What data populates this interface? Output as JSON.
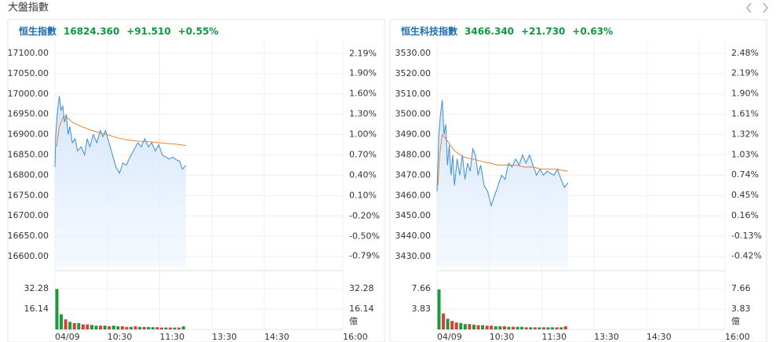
{
  "header": {
    "title": "大盤指數"
  },
  "chart_data": [
    {
      "type": "line",
      "quote": {
        "name": "恒生指數",
        "last": "16824.360",
        "change": "+91.510",
        "pct": "+0.55%"
      },
      "xlim": [
        0,
        330
      ],
      "xticks": [
        {
          "value": 0,
          "label": "04/09"
        },
        {
          "value": 60,
          "label": "10:30"
        },
        {
          "value": 120,
          "label": "11:30"
        },
        {
          "value": 180,
          "label": "13:30"
        },
        {
          "value": 240,
          "label": "14:30"
        },
        {
          "value": 300,
          "label": null
        },
        {
          "value": 330,
          "label": "16:00"
        }
      ],
      "ylim": [
        16575,
        17125
      ],
      "yticks": [
        {
          "value": 17100,
          "label": "17100.00"
        },
        {
          "value": 17050,
          "label": "17050.00"
        },
        {
          "value": 17000,
          "label": "17000.00"
        },
        {
          "value": 16950,
          "label": "16950.00"
        },
        {
          "value": 16900,
          "label": "16900.00"
        },
        {
          "value": 16850,
          "label": "16850.00"
        },
        {
          "value": 16800,
          "label": "16800.00"
        },
        {
          "value": 16750,
          "label": "16750.00"
        },
        {
          "value": 16700,
          "label": "16700.00"
        },
        {
          "value": 16650,
          "label": "16650.00"
        },
        {
          "value": 16600,
          "label": "16600.00"
        }
      ],
      "y2lim": [
        -0.943,
        2.344
      ],
      "y2ticks": [
        {
          "value": 2.19,
          "label": "2.19%"
        },
        {
          "value": 1.9,
          "label": "1.90%"
        },
        {
          "value": 1.6,
          "label": "1.60%"
        },
        {
          "value": 1.3,
          "label": "1.30%"
        },
        {
          "value": 1.0,
          "label": "1.00%"
        },
        {
          "value": 0.7,
          "label": "0.70%"
        },
        {
          "value": 0.4,
          "label": "0.40%"
        },
        {
          "value": 0.1,
          "label": "0.10%"
        },
        {
          "value": -0.2,
          "label": "-0.20%"
        },
        {
          "value": -0.5,
          "label": "-0.50%"
        },
        {
          "value": -0.79,
          "label": "-0.79%"
        }
      ],
      "grid": true,
      "up_color": "#0b9a3d",
      "down_color": "#e03b3b",
      "name_color": "#1b6db3",
      "price": {
        "color": "#3b8de0",
        "x": [
          0,
          1,
          3,
          5,
          7,
          9,
          11,
          13,
          15,
          17,
          20,
          23,
          26,
          30,
          34,
          37,
          40,
          44,
          48,
          52,
          55,
          58,
          62,
          66,
          70,
          74,
          78,
          82,
          86,
          90,
          95,
          99,
          103,
          107,
          111,
          115,
          119,
          123,
          127,
          131,
          135,
          139,
          143,
          146,
          150
        ],
        "values": [
          16820,
          16900,
          16960,
          16995,
          16960,
          16970,
          16930,
          16950,
          16900,
          16920,
          16880,
          16890,
          16860,
          16870,
          16850,
          16890,
          16870,
          16900,
          16880,
          16910,
          16895,
          16910,
          16880,
          16850,
          16820,
          16805,
          16830,
          16825,
          16845,
          16860,
          16880,
          16870,
          16890,
          16870,
          16880,
          16860,
          16875,
          16850,
          16845,
          16840,
          16845,
          16838,
          16835,
          16815,
          16824.36
        ]
      },
      "average": {
        "color": "#e8822c",
        "x": [
          2,
          5,
          10,
          15,
          20,
          30,
          40,
          50,
          60,
          70,
          80,
          90,
          100,
          110,
          120,
          130,
          140,
          150
        ],
        "values": [
          16870,
          16920,
          16945,
          16940,
          16930,
          16920,
          16912,
          16905,
          16900,
          16893,
          16888,
          16885,
          16883,
          16882,
          16880,
          16878,
          16876,
          16873
        ]
      },
      "volume": {
        "ylim": [
          0,
          44.7
        ],
        "yticks": [
          32.28,
          16.14
        ],
        "unit": "億",
        "x": [
          0,
          5,
          10,
          15,
          20,
          25,
          30,
          35,
          40,
          45,
          50,
          55,
          60,
          65,
          70,
          75,
          80,
          85,
          90,
          95,
          100,
          105,
          110,
          115,
          120,
          125,
          130,
          135,
          140,
          145
        ],
        "values": [
          32,
          12,
          8,
          6,
          5,
          5,
          4,
          4,
          3.5,
          3,
          3,
          3,
          2.5,
          3,
          2.5,
          2.5,
          2,
          2,
          2.5,
          2,
          2,
          2,
          1.8,
          1.8,
          1.5,
          1.5,
          1.5,
          1.5,
          1.5,
          2.5
        ],
        "colors": [
          "#1a9c3c",
          "#1a9c3c",
          "#e03b3b",
          "#1a9c3c",
          "#e03b3b",
          "#1a9c3c",
          "#e03b3b",
          "#e03b3b",
          "#1a9c3c",
          "#1a9c3c",
          "#e03b3b",
          "#1a9c3c",
          "#e03b3b",
          "#1a9c3c",
          "#1a9c3c",
          "#e03b3b",
          "#e03b3b",
          "#1a9c3c",
          "#e03b3b",
          "#1a9c3c",
          "#e03b3b",
          "#1a9c3c",
          "#1a9c3c",
          "#e03b3b",
          "#e03b3b",
          "#1a9c3c",
          "#e03b3b",
          "#1a9c3c",
          "#e03b3b",
          "#1a9c3c"
        ]
      }
    },
    {
      "type": "line",
      "quote": {
        "name": "恒生科技指數",
        "last": "3466.340",
        "change": "+21.730",
        "pct": "+0.63%"
      },
      "xlim": [
        0,
        330
      ],
      "xticks": [
        {
          "value": 0,
          "label": "04/09"
        },
        {
          "value": 60,
          "label": "10:30"
        },
        {
          "value": 120,
          "label": "11:30"
        },
        {
          "value": 180,
          "label": "13:30"
        },
        {
          "value": 240,
          "label": "14:30"
        },
        {
          "value": 300,
          "label": null
        },
        {
          "value": 330,
          "label": "16:00"
        }
      ],
      "ylim": [
        3425,
        3535
      ],
      "yticks": [
        {
          "value": 3530,
          "label": "3530.00"
        },
        {
          "value": 3520,
          "label": "3520.00"
        },
        {
          "value": 3510,
          "label": "3510.00"
        },
        {
          "value": 3500,
          "label": "3500.00"
        },
        {
          "value": 3490,
          "label": "3490.00"
        },
        {
          "value": 3480,
          "label": "3480.00"
        },
        {
          "value": 3470,
          "label": "3470.00"
        },
        {
          "value": 3460,
          "label": "3460.00"
        },
        {
          "value": 3450,
          "label": "3450.00"
        },
        {
          "value": 3440,
          "label": "3440.00"
        },
        {
          "value": 3430,
          "label": "3430.00"
        }
      ],
      "y2lim": [
        -0.569,
        2.624
      ],
      "y2ticks": [
        {
          "value": 2.48,
          "label": "2.48%"
        },
        {
          "value": 2.19,
          "label": "2.19%"
        },
        {
          "value": 1.9,
          "label": "1.90%"
        },
        {
          "value": 1.61,
          "label": "1.61%"
        },
        {
          "value": 1.32,
          "label": "1.32%"
        },
        {
          "value": 1.03,
          "label": "1.03%"
        },
        {
          "value": 0.74,
          "label": "0.74%"
        },
        {
          "value": 0.45,
          "label": "0.45%"
        },
        {
          "value": 0.16,
          "label": "0.16%"
        },
        {
          "value": -0.13,
          "label": "-0.13%"
        },
        {
          "value": -0.42,
          "label": "-0.42%"
        }
      ],
      "grid": true,
      "up_color": "#0b9a3d",
      "down_color": "#e03b3b",
      "name_color": "#1b6db3",
      "price": {
        "color": "#3b8de0",
        "x": [
          0,
          2,
          4,
          6,
          8,
          10,
          12,
          14,
          16,
          18,
          20,
          23,
          26,
          29,
          32,
          35,
          38,
          41,
          44,
          47,
          50,
          54,
          58,
          62,
          66,
          70,
          74,
          78,
          82,
          86,
          90,
          94,
          98,
          102,
          106,
          110,
          114,
          118,
          122,
          126,
          130,
          134,
          138,
          142,
          146,
          150
        ],
        "values": [
          3462,
          3490,
          3500,
          3507,
          3490,
          3495,
          3475,
          3485,
          3470,
          3480,
          3465,
          3478,
          3470,
          3480,
          3468,
          3476,
          3472,
          3483,
          3480,
          3470,
          3475,
          3465,
          3462,
          3455,
          3460,
          3465,
          3470,
          3468,
          3476,
          3474,
          3478,
          3475,
          3480,
          3476,
          3480,
          3475,
          3470,
          3473,
          3470,
          3472,
          3471,
          3470,
          3473,
          3468,
          3464,
          3466.34
        ]
      },
      "average": {
        "color": "#e8822c",
        "x": [
          1,
          3,
          6,
          10,
          15,
          20,
          30,
          40,
          50,
          60,
          70,
          80,
          90,
          100,
          110,
          120,
          135,
          150
        ],
        "values": [
          3465,
          3480,
          3490,
          3488,
          3485,
          3482,
          3479,
          3478,
          3477,
          3476,
          3475,
          3475,
          3475,
          3474,
          3474,
          3473,
          3473,
          3472
        ]
      },
      "volume": {
        "ylim": [
          0,
          10.6
        ],
        "yticks": [
          7.66,
          3.83
        ],
        "unit": "億",
        "x": [
          0,
          5,
          10,
          15,
          20,
          25,
          30,
          35,
          40,
          45,
          50,
          55,
          60,
          65,
          70,
          75,
          80,
          85,
          90,
          95,
          100,
          105,
          110,
          115,
          120,
          125,
          130,
          135,
          140,
          145
        ],
        "values": [
          7.5,
          3,
          2,
          1.6,
          1.3,
          1.2,
          1,
          1,
          0.9,
          0.8,
          0.8,
          0.7,
          0.7,
          0.6,
          0.6,
          0.6,
          0.5,
          0.5,
          0.5,
          0.5,
          0.4,
          0.4,
          0.4,
          0.4,
          0.4,
          0.4,
          0.4,
          0.4,
          0.4,
          0.6
        ],
        "colors": [
          "#1a9c3c",
          "#e03b3b",
          "#1a9c3c",
          "#e03b3b",
          "#e03b3b",
          "#1a9c3c",
          "#1a9c3c",
          "#e03b3b",
          "#1a9c3c",
          "#e03b3b",
          "#1a9c3c",
          "#e03b3b",
          "#e03b3b",
          "#1a9c3c",
          "#1a9c3c",
          "#e03b3b",
          "#1a9c3c",
          "#e03b3b",
          "#1a9c3c",
          "#1a9c3c",
          "#e03b3b",
          "#1a9c3c",
          "#e03b3b",
          "#1a9c3c",
          "#e03b3b",
          "#1a9c3c",
          "#1a9c3c",
          "#e03b3b",
          "#1a9c3c",
          "#e03b3b"
        ]
      }
    }
  ]
}
